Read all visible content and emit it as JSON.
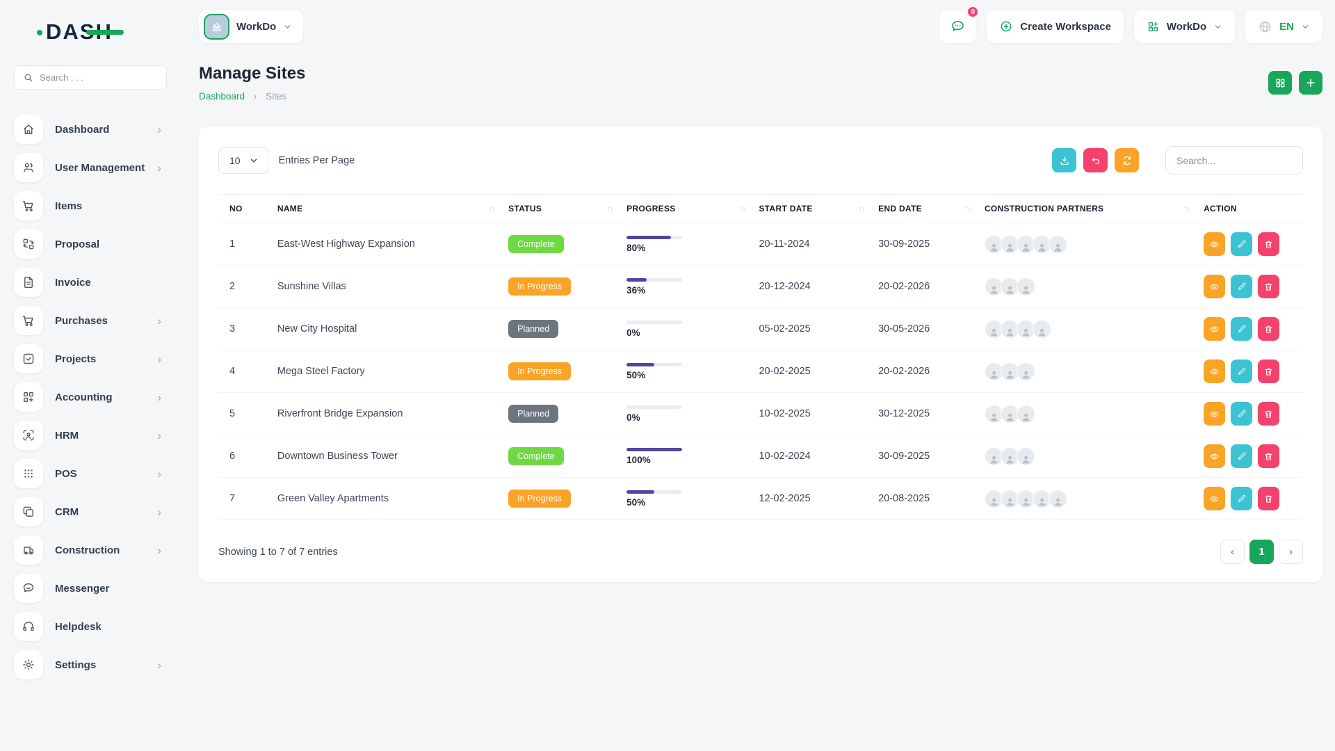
{
  "app": {
    "logo": "DASH"
  },
  "colors": {
    "accent_green": "#17A65A",
    "lime_badge": "#6FD943",
    "orange": "#F9A426",
    "gray_badge": "#6C757D",
    "cyan": "#3BC3D4",
    "pink": "#F5426C",
    "progress_purple": "#51459E"
  },
  "icons": {
    "sort": "↑↓",
    "chevron_right": "›"
  },
  "sidebar": {
    "search_placeholder": "Search . . .",
    "items": [
      {
        "label": "Dashboard",
        "icon": "home",
        "has_submenu": true
      },
      {
        "label": "User Management",
        "icon": "users",
        "has_submenu": true
      },
      {
        "label": "Items",
        "icon": "cart",
        "has_submenu": false
      },
      {
        "label": "Proposal",
        "icon": "transfer",
        "has_submenu": false
      },
      {
        "label": "Invoice",
        "icon": "file",
        "has_submenu": false
      },
      {
        "label": "Purchases",
        "icon": "cart",
        "has_submenu": true
      },
      {
        "label": "Projects",
        "icon": "check-square",
        "has_submenu": true
      },
      {
        "label": "Accounting",
        "icon": "grid-plus",
        "has_submenu": true
      },
      {
        "label": "HRM",
        "icon": "user-scan",
        "has_submenu": true
      },
      {
        "label": "POS",
        "icon": "dots-grid",
        "has_submenu": true
      },
      {
        "label": "CRM",
        "icon": "copy",
        "has_submenu": true
      },
      {
        "label": "Construction",
        "icon": "truck",
        "has_submenu": true
      },
      {
        "label": "Messenger",
        "icon": "chat",
        "has_submenu": false
      },
      {
        "label": "Helpdesk",
        "icon": "headset",
        "has_submenu": false
      },
      {
        "label": "Settings",
        "icon": "gear",
        "has_submenu": true
      }
    ]
  },
  "topbar": {
    "workspace": {
      "label": "WorkDo"
    },
    "chat_badge": "0",
    "create_workspace": "Create Workspace",
    "workspace_dropdown": "WorkDo",
    "language": "EN"
  },
  "page": {
    "title": "Manage Sites",
    "breadcrumb": {
      "link": "Dashboard",
      "separator": "›",
      "current": "Sites"
    }
  },
  "toolbar": {
    "entries_value": "10",
    "entries_label": "Entries Per Page",
    "search_placeholder": "Search..."
  },
  "table": {
    "columns": [
      {
        "label": "NO",
        "sortable": false
      },
      {
        "label": "NAME",
        "sortable": true
      },
      {
        "label": "STATUS",
        "sortable": true
      },
      {
        "label": "PROGRESS",
        "sortable": true
      },
      {
        "label": "START DATE",
        "sortable": true
      },
      {
        "label": "END DATE",
        "sortable": true
      },
      {
        "label": "CONSTRUCTION PARTNERS",
        "sortable": true
      },
      {
        "label": "ACTION",
        "sortable": false
      }
    ],
    "rows": [
      {
        "no": "1",
        "name": "East-West Highway Expansion",
        "status": "Complete",
        "status_type": "complete",
        "progress": 80,
        "progress_label": "80%",
        "start_date": "20-11-2024",
        "end_date": "30-09-2025",
        "partners": 5
      },
      {
        "no": "2",
        "name": "Sunshine Villas",
        "status": "In Progress",
        "status_type": "progress",
        "progress": 36,
        "progress_label": "36%",
        "start_date": "20-12-2024",
        "end_date": "20-02-2026",
        "partners": 3
      },
      {
        "no": "3",
        "name": "New City Hospital",
        "status": "Planned",
        "status_type": "planned",
        "progress": 0,
        "progress_label": "0%",
        "start_date": "05-02-2025",
        "end_date": "30-05-2026",
        "partners": 4
      },
      {
        "no": "4",
        "name": "Mega Steel Factory",
        "status": "In Progress",
        "status_type": "progress",
        "progress": 50,
        "progress_label": "50%",
        "start_date": "20-02-2025",
        "end_date": "20-02-2026",
        "partners": 3
      },
      {
        "no": "5",
        "name": "Riverfront Bridge Expansion",
        "status": "Planned",
        "status_type": "planned",
        "progress": 0,
        "progress_label": "0%",
        "start_date": "10-02-2025",
        "end_date": "30-12-2025",
        "partners": 3
      },
      {
        "no": "6",
        "name": "Downtown Business Tower",
        "status": "Complete",
        "status_type": "complete",
        "progress": 100,
        "progress_label": "100%",
        "start_date": "10-02-2024",
        "end_date": "30-09-2025",
        "partners": 3
      },
      {
        "no": "7",
        "name": "Green Valley Apartments",
        "status": "In Progress",
        "status_type": "progress",
        "progress": 50,
        "progress_label": "50%",
        "start_date": "12-02-2025",
        "end_date": "20-08-2025",
        "partners": 5
      }
    ]
  },
  "footer": {
    "showing": "Showing 1 to 7 of 7 entries",
    "pagination": {
      "prev": "‹",
      "page": "1",
      "next": "›"
    }
  }
}
